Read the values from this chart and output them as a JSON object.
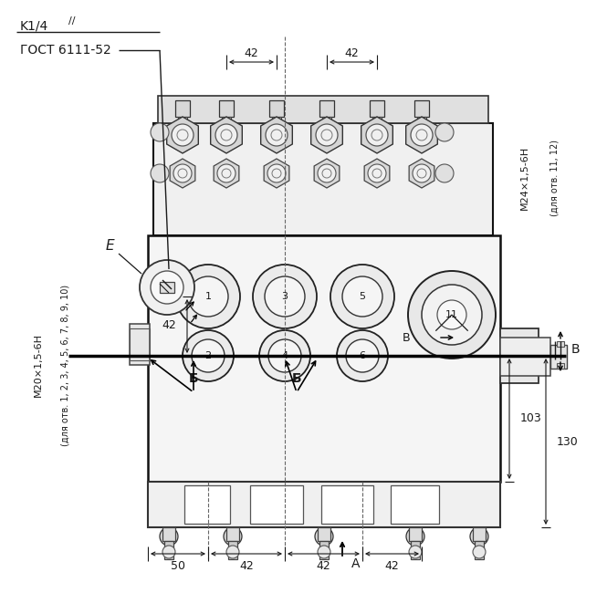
{
  "bg_color": "#ffffff",
  "line_color": "#1a1a1a",
  "text_color": "#1a1a1a",
  "label_k14": "K1/4",
  "label_slash": "//",
  "label_gost": "ГОСТ 6111-52",
  "label_E": "E",
  "label_B_right": "B",
  "label_B_mid": "B",
  "label_A": "A",
  "label_B1": "Б",
  "label_B2": "Б",
  "label_m20": "M20×1,5-6H",
  "label_m20_sub": "(для отв. 1, 2, 3, 4, 5, 6, 7, 8, 9, 10)",
  "label_m24": "M24×1,5-6H",
  "label_m24_sub": "(для отв. 11, 12)",
  "dim_42_top1": "42",
  "dim_42_top2": "42",
  "dim_42_vert": "42",
  "dim_50": "50",
  "dim_42_b1": "42",
  "dim_42_b2": "42",
  "dim_42_b3": "42",
  "dim_103": "103",
  "dim_130": "130",
  "figsize": [
    6.65,
    6.5
  ],
  "dpi": 100
}
